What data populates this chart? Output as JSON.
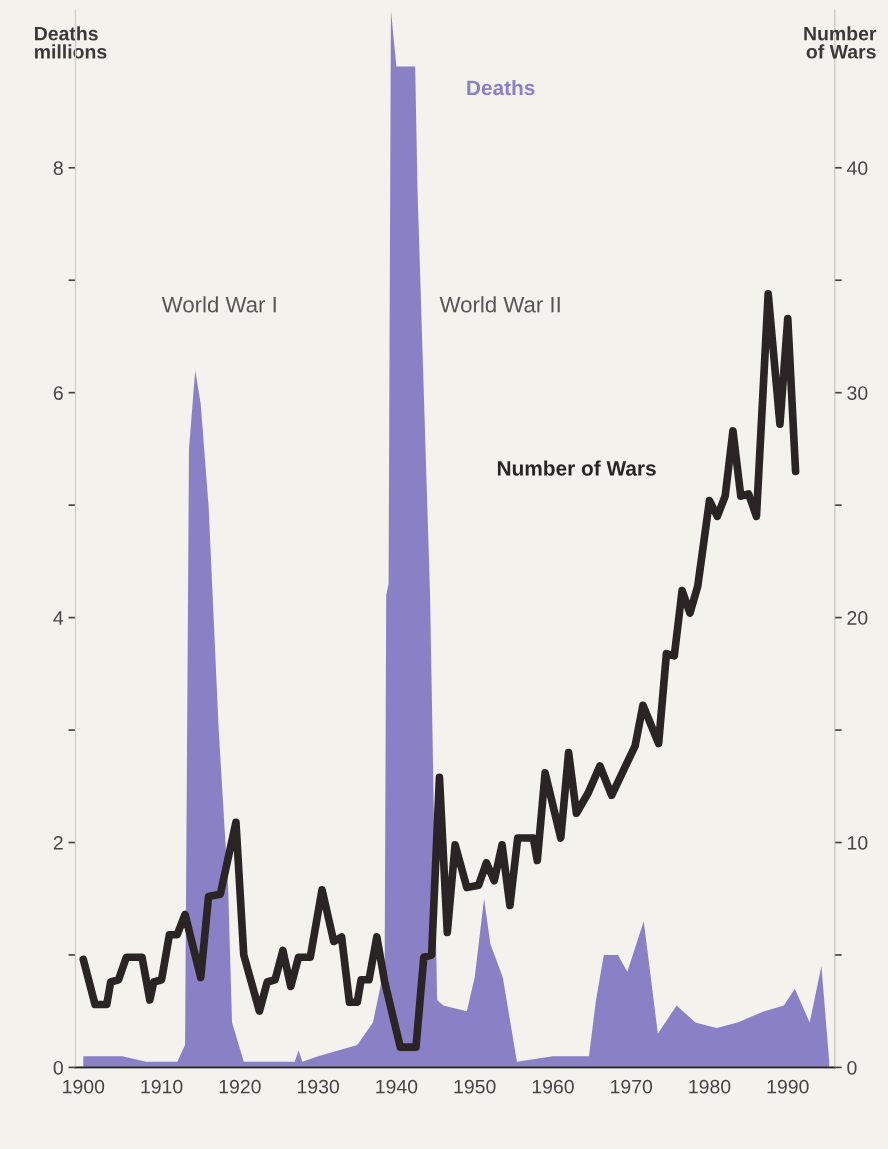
{
  "chart_data": {
    "type": "area",
    "ylabel": "Deaths\nmillions",
    "y2label": "Number\nof Wars",
    "annotations": [
      "World War I",
      "World War II"
    ],
    "series": [
      {
        "name": "Deaths",
        "color": "#8a80c6",
        "x": [
          1900,
          1905,
          1908,
          1912,
          1913,
          1913.5,
          1914.3,
          1915,
          1916,
          1917.3,
          1918.5,
          1919,
          1920.5,
          1927,
          1927.5,
          1928,
          1930,
          1935,
          1937,
          1938.5,
          1938.7,
          1939,
          1939.3,
          1940,
          1942.4,
          1942.7,
          1944.3,
          1945.2,
          1946,
          1949,
          1950,
          1951.2,
          1952,
          1953.6,
          1955.4,
          1960,
          1964.6,
          1965.5,
          1966.5,
          1968.3,
          1969.5,
          1971.6,
          1973.4,
          1975.8,
          1978.2,
          1980.9,
          1983.6,
          1987,
          1989.5,
          1990.9,
          1992.8,
          1994.3,
          1995.3
        ],
        "values": [
          0.1,
          0.1,
          0.05,
          0.05,
          0.2,
          5.5,
          6.2,
          5.9,
          5.0,
          3.0,
          1.6,
          0.4,
          0.05,
          0.05,
          0.15,
          0.05,
          0.1,
          0.2,
          0.4,
          0.9,
          4.2,
          4.3,
          9.4,
          8.9,
          8.9,
          7.8,
          4.2,
          0.6,
          0.55,
          0.5,
          0.8,
          1.5,
          1.1,
          0.8,
          0.05,
          0.1,
          0.1,
          0.6,
          1.0,
          1.0,
          0.85,
          1.3,
          0.3,
          0.55,
          0.4,
          0.35,
          0.4,
          0.5,
          0.55,
          0.7,
          0.4,
          0.9,
          0.05
        ]
      },
      {
        "name": "Number of Wars",
        "type": "line",
        "axis": "y2",
        "color": "#2a2424",
        "x": [
          1900,
          1901.5,
          1903,
          1903.5,
          1904.5,
          1905.5,
          1907.5,
          1908.5,
          1909,
          1910,
          1911,
          1912,
          1913,
          1915,
          1916,
          1917.5,
          1919.5,
          1920.5,
          1922.5,
          1923.5,
          1924.5,
          1925.5,
          1926.5,
          1927.5,
          1929,
          1930.5,
          1932,
          1933,
          1934,
          1935,
          1935.5,
          1936.5,
          1937.5,
          1938.5,
          1940.5,
          1942.5,
          1943.5,
          1944.5,
          1945.5,
          1946.5,
          1947.5,
          1949,
          1950.5,
          1951.5,
          1952.5,
          1953.5,
          1954.5,
          1955.5,
          1957.5,
          1958,
          1959,
          1961,
          1962,
          1963,
          1964.5,
          1966,
          1967.5,
          1970.5,
          1971.5,
          1973.5,
          1974.5,
          1975.5,
          1976.5,
          1977.5,
          1978.5,
          1980,
          1981,
          1982,
          1983,
          1984,
          1985,
          1986,
          1987.5,
          1989,
          1990,
          1991
        ],
        "values": [
          4.8,
          2.8,
          2.8,
          3.8,
          3.9,
          4.9,
          4.9,
          3.0,
          3.8,
          3.9,
          5.9,
          5.9,
          6.8,
          4.0,
          7.6,
          7.7,
          10.9,
          5.0,
          2.5,
          3.8,
          3.9,
          5.2,
          3.6,
          4.9,
          4.9,
          7.9,
          5.6,
          5.8,
          2.9,
          2.9,
          3.9,
          3.9,
          5.8,
          3.8,
          0.9,
          0.9,
          4.9,
          5.0,
          12.9,
          6.0,
          9.9,
          8.0,
          8.1,
          9.1,
          8.3,
          9.9,
          7.2,
          10.2,
          10.2,
          9.2,
          13.1,
          10.2,
          14.0,
          11.3,
          12.2,
          13.4,
          12.1,
          14.3,
          16.1,
          14.4,
          18.4,
          18.3,
          21.2,
          20.2,
          21.4,
          25.2,
          24.5,
          25.4,
          28.3,
          25.4,
          25.5,
          24.5,
          34.4,
          28.6,
          33.3,
          26.5
        ]
      }
    ],
    "xlim": [
      1899,
      1996
    ],
    "xticks": [
      1900,
      1910,
      1920,
      1930,
      1940,
      1950,
      1960,
      1970,
      1980,
      1990
    ],
    "ylim": [
      0,
      9.4
    ],
    "yticks": [
      0,
      {
        "value": 1,
        "label": null
      },
      2,
      {
        "value": 3,
        "label": null
      },
      4,
      {
        "value": 5,
        "label": null
      },
      6,
      {
        "value": 7,
        "label": null
      },
      8
    ],
    "y2lim": [
      0,
      47
    ],
    "y2ticks": [
      0,
      {
        "value": 5,
        "label": null
      },
      10,
      {
        "value": 15,
        "label": null
      },
      20,
      {
        "value": 25,
        "label": null
      },
      30,
      {
        "value": 35,
        "label": null
      },
      40
    ],
    "grid": false,
    "legend": false
  }
}
